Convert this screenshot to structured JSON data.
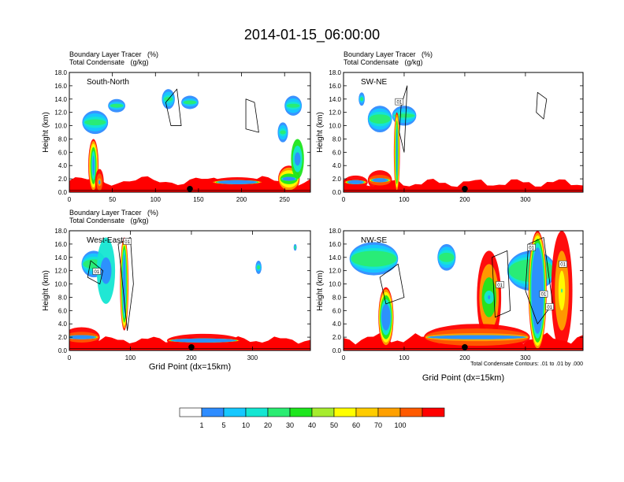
{
  "title": "2014-01-15_06:00:00",
  "colors": {
    "background": "#ffffff",
    "axis": "#000000",
    "contour": "#000000"
  },
  "chart_data": [
    {
      "id": "south-north",
      "type": "heatmap",
      "label": "South-North",
      "header_line1": "Boundary Layer Tracer   (%)",
      "header_line2": "Total Condensate   (g/kg)",
      "xlabel": "",
      "ylabel": "Height (km)",
      "xlim": [
        0,
        280
      ],
      "ylim": [
        0,
        18
      ],
      "x_ticks": [
        0,
        50,
        100,
        150,
        200,
        250
      ],
      "y_ticks": [
        "0.0",
        "2.0",
        "4.0",
        "6.0",
        "8.0",
        "10.0",
        "12.0",
        "14.0",
        "16.0",
        "18.0"
      ],
      "marker_x": 140,
      "contour_labels": [],
      "footnote": ""
    },
    {
      "id": "sw-ne",
      "type": "heatmap",
      "label": "SW-NE",
      "header_line1": "Boundary Layer Tracer   (%)",
      "header_line2": "Total Condensate   (g/kg)",
      "xlabel": "",
      "ylabel": "Height (km)",
      "xlim": [
        0,
        395
      ],
      "ylim": [
        0,
        18
      ],
      "x_ticks": [
        0,
        100,
        200,
        300
      ],
      "y_ticks": [
        "0.0",
        "2.0",
        "4.0",
        "6.0",
        "8.0",
        "10.0",
        "12.0",
        "14.0",
        "16.0",
        "18.0"
      ],
      "marker_x": 200,
      "contour_labels": [
        {
          "x": 92,
          "y": 13.6,
          "text": "01"
        }
      ],
      "footnote": ""
    },
    {
      "id": "west-east",
      "type": "heatmap",
      "label": "West-East",
      "header_line1": "Boundary Layer Tracer   (%)",
      "header_line2": "Total Condensate   (g/kg)",
      "xlabel": "Grid Point (dx=15km)",
      "ylabel": "Height (km)",
      "xlim": [
        0,
        395
      ],
      "ylim": [
        0,
        18
      ],
      "x_ticks": [
        0,
        100,
        200,
        300
      ],
      "y_ticks": [
        "0.0",
        "2.0",
        "4.0",
        "6.0",
        "8.0",
        "10.0",
        "12.0",
        "14.0",
        "16.0",
        "18.0"
      ],
      "marker_x": 200,
      "contour_labels": [
        {
          "x": 95,
          "y": 16.4,
          "text": "01"
        },
        {
          "x": 45,
          "y": 11.9,
          "text": "01"
        }
      ],
      "footnote": ""
    },
    {
      "id": "nw-se",
      "type": "heatmap",
      "label": "NW-SE",
      "header_line1": "",
      "header_line2": "",
      "xlabel": "Grid Point (dx=15km)",
      "ylabel": "Height (km)",
      "xlim": [
        0,
        395
      ],
      "ylim": [
        0,
        18
      ],
      "x_ticks": [
        0,
        100,
        200,
        300
      ],
      "y_ticks": [
        "0.0",
        "2.0",
        "4.0",
        "6.0",
        "8.0",
        "10.0",
        "12.0",
        "14.0",
        "16.0",
        "18.0"
      ],
      "marker_x": 200,
      "contour_labels": [
        {
          "x": 310,
          "y": 15.5,
          "text": "01"
        },
        {
          "x": 362,
          "y": 13.0,
          "text": "01"
        },
        {
          "x": 258,
          "y": 9.9,
          "text": "01"
        },
        {
          "x": 330,
          "y": 8.5,
          "text": "01"
        },
        {
          "x": 340,
          "y": 6.6,
          "text": "01"
        }
      ],
      "footnote": "Total Condensate Contours: .01 to .01 by .000"
    }
  ],
  "colorbar": {
    "labels": [
      "1",
      "5",
      "10",
      "20",
      "30",
      "40",
      "50",
      "60",
      "70",
      "100"
    ],
    "colors": [
      "#ffffff",
      "#2e8cff",
      "#16c8ff",
      "#14e6d2",
      "#2aec72",
      "#1ee61e",
      "#a6ec2e",
      "#ffff00",
      "#ffcc00",
      "#ffa000",
      "#ff5a00",
      "#ff0000"
    ]
  }
}
